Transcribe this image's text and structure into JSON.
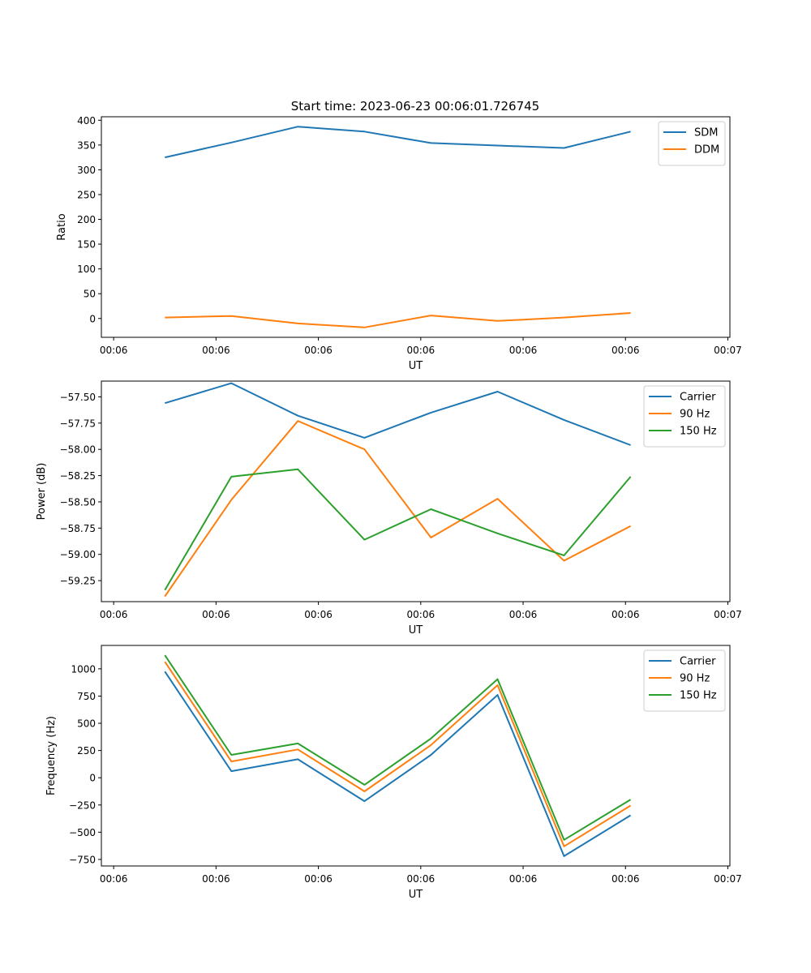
{
  "figure_title": "Start time: 2023-06-23 00:06:01.726745",
  "colors": {
    "blue": "#1f77b4",
    "orange": "#ff7f0e",
    "green": "#2ca02c"
  },
  "chart_data": [
    {
      "type": "line",
      "xlabel": "UT",
      "ylabel": "Ratio",
      "x_tick_labels": [
        "00:06",
        "00:06",
        "00:06",
        "00:06",
        "00:06",
        "00:06",
        "00:07"
      ],
      "x_tick_pos": [
        0,
        1,
        2,
        3,
        4,
        5,
        6
      ],
      "xlim": [
        -0.12,
        6.02
      ],
      "x": [
        0.5,
        1.15,
        1.8,
        2.45,
        3.1,
        3.75,
        4.4,
        5.05
      ],
      "ylim": [
        -38,
        407
      ],
      "yticks": [
        0,
        50,
        100,
        150,
        200,
        250,
        300,
        350,
        400
      ],
      "y_tick_labels": [
        "0",
        "50",
        "100",
        "150",
        "200",
        "250",
        "300",
        "350",
        "400"
      ],
      "legend": "upper right",
      "series": [
        {
          "name": "SDM",
          "color": "#1f77b4",
          "values": [
            325,
            355,
            387,
            377,
            354,
            349,
            344,
            377
          ]
        },
        {
          "name": "DDM",
          "color": "#ff7f0e",
          "values": [
            2,
            5,
            -10,
            -18,
            6,
            -5,
            2,
            11
          ]
        }
      ]
    },
    {
      "type": "line",
      "xlabel": "UT",
      "ylabel": "Power (dB)",
      "x_tick_labels": [
        "00:06",
        "00:06",
        "00:06",
        "00:06",
        "00:06",
        "00:06",
        "00:07"
      ],
      "x_tick_pos": [
        0,
        1,
        2,
        3,
        4,
        5,
        6
      ],
      "xlim": [
        -0.12,
        6.02
      ],
      "x": [
        0.5,
        1.15,
        1.8,
        2.45,
        3.1,
        3.75,
        4.4,
        5.05
      ],
      "ylim": [
        -59.45,
        -57.35
      ],
      "yticks": [
        -59.25,
        -59.0,
        -58.75,
        -58.5,
        -58.25,
        -58.0,
        -57.75,
        -57.5
      ],
      "y_tick_labels": [
        "−59.25",
        "−59.00",
        "−58.75",
        "−58.50",
        "−58.25",
        "−58.00",
        "−57.75",
        "−57.50"
      ],
      "legend": "upper right",
      "series": [
        {
          "name": "Carrier",
          "color": "#1f77b4",
          "values": [
            -57.56,
            -57.37,
            -57.68,
            -57.89,
            -57.65,
            -57.45,
            -57.72,
            -57.96
          ]
        },
        {
          "name": "90 Hz",
          "color": "#ff7f0e",
          "values": [
            -59.4,
            -58.48,
            -57.73,
            -58.0,
            -58.84,
            -58.47,
            -59.06,
            -58.73
          ]
        },
        {
          "name": "150 Hz",
          "color": "#2ca02c",
          "values": [
            -59.34,
            -58.26,
            -58.19,
            -58.86,
            -58.57,
            -58.8,
            -59.01,
            -58.26
          ]
        }
      ]
    },
    {
      "type": "line",
      "xlabel": "UT",
      "ylabel": "Frequency (Hz)",
      "x_tick_labels": [
        "00:06",
        "00:06",
        "00:06",
        "00:06",
        "00:06",
        "00:06",
        "00:07"
      ],
      "x_tick_pos": [
        0,
        1,
        2,
        3,
        4,
        5,
        6
      ],
      "xlim": [
        -0.12,
        6.02
      ],
      "x": [
        0.5,
        1.15,
        1.8,
        2.45,
        3.1,
        3.75,
        4.4,
        5.05
      ],
      "ylim": [
        -810,
        1215
      ],
      "yticks": [
        -750,
        -500,
        -250,
        0,
        250,
        500,
        750,
        1000
      ],
      "y_tick_labels": [
        "−750",
        "−500",
        "−250",
        "0",
        "250",
        "500",
        "750",
        "1000"
      ],
      "legend": "upper right",
      "series": [
        {
          "name": "Carrier",
          "color": "#1f77b4",
          "values": [
            975,
            60,
            170,
            -215,
            210,
            760,
            -720,
            -345
          ]
        },
        {
          "name": "90 Hz",
          "color": "#ff7f0e",
          "values": [
            1065,
            150,
            260,
            -125,
            300,
            850,
            -630,
            -255
          ]
        },
        {
          "name": "150 Hz",
          "color": "#2ca02c",
          "values": [
            1125,
            210,
            315,
            -65,
            360,
            905,
            -570,
            -200
          ]
        }
      ]
    }
  ]
}
